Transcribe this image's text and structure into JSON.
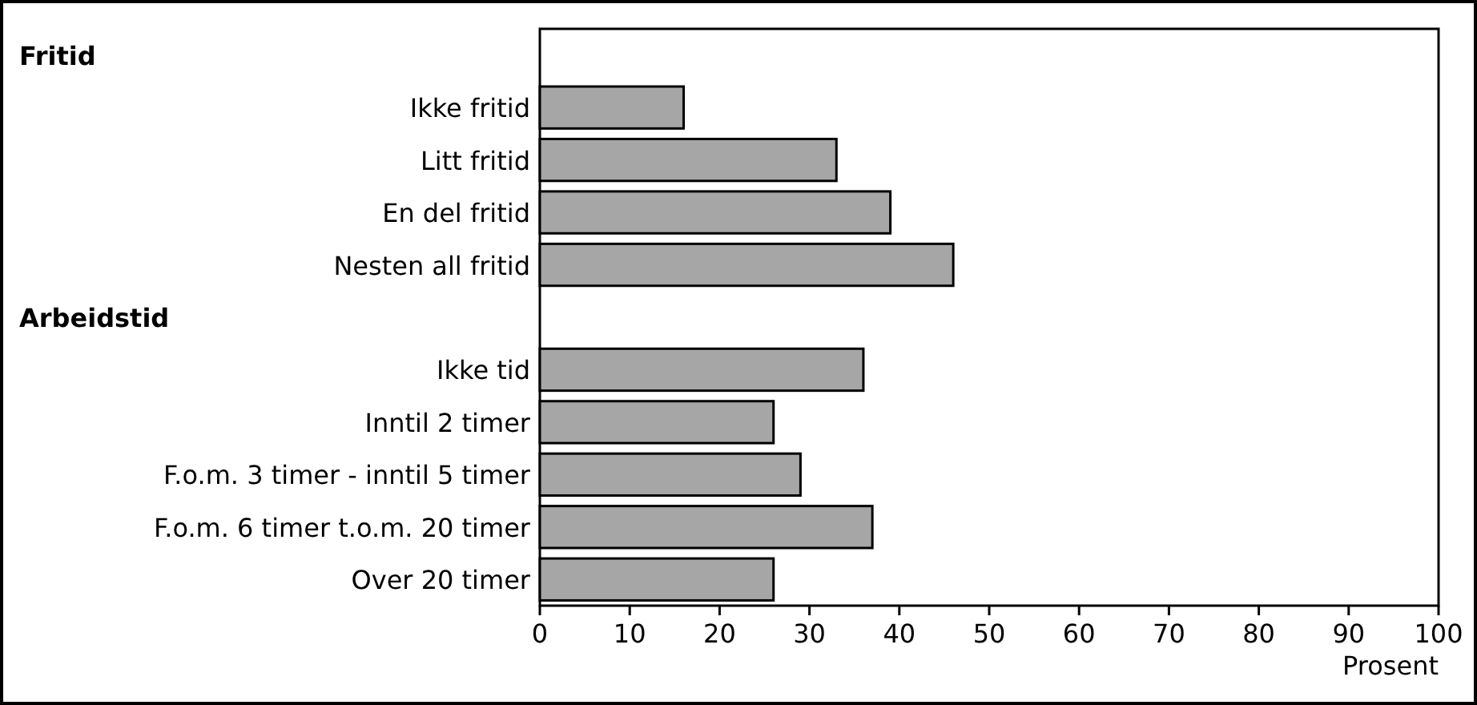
{
  "chart_data": {
    "type": "bar",
    "orientation": "horizontal",
    "xlabel": "Prosent",
    "categories": [
      null,
      "Ikke fritid",
      "Litt fritid",
      "En del fritid",
      "Nesten all fritid",
      null,
      "Ikke tid",
      "Inntil 2 timer",
      "F.o.m. 3 timer - inntil 5 timer",
      "F.o.m. 6 timer t.o.m. 20 timer",
      "Over 20 timer"
    ],
    "values": [
      null,
      16,
      33,
      39,
      46,
      null,
      36,
      26,
      29,
      37,
      26
    ],
    "annotations": [
      "Fritid",
      "Arbeidstid"
    ],
    "color": "#a6a6a6",
    "xlim": [
      0,
      100
    ],
    "xticks": [
      0,
      10,
      20,
      30,
      40,
      50,
      60,
      70,
      80,
      90,
      100
    ],
    "grid": false
  }
}
